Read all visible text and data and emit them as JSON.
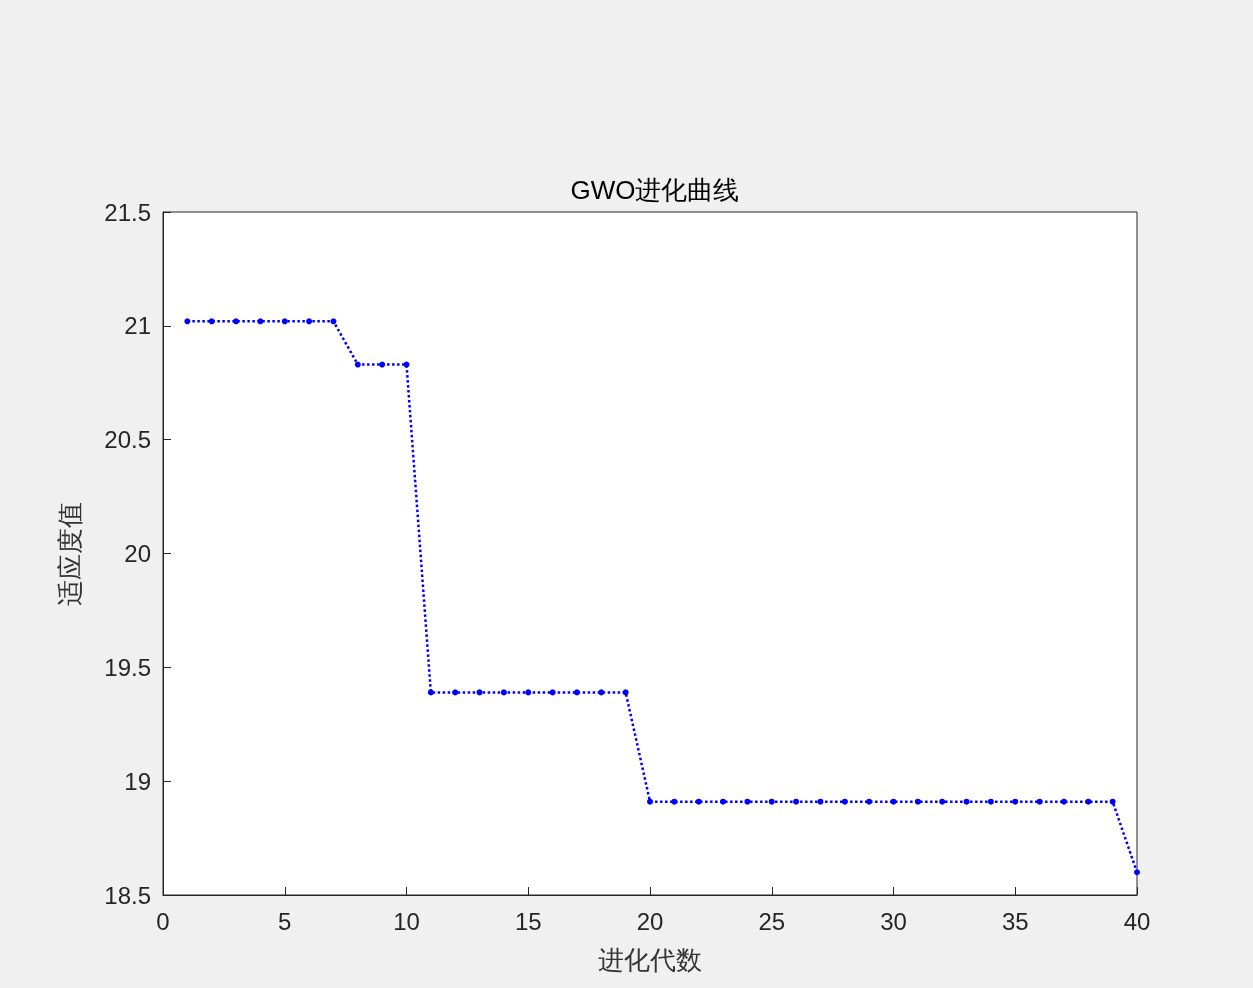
{
  "chart_data": {
    "type": "line",
    "title": "GWO进化曲线",
    "xlabel": "进化代数",
    "ylabel": "适应度值",
    "x": [
      1,
      2,
      3,
      4,
      5,
      6,
      7,
      8,
      9,
      10,
      11,
      12,
      13,
      14,
      15,
      16,
      17,
      18,
      19,
      20,
      21,
      22,
      23,
      24,
      25,
      26,
      27,
      28,
      29,
      30,
      31,
      32,
      33,
      34,
      35,
      36,
      37,
      38,
      39,
      40
    ],
    "series": [
      {
        "color": "#0000ff",
        "values": [
          21.02,
          21.02,
          21.02,
          21.02,
          21.02,
          21.02,
          21.02,
          20.83,
          20.83,
          20.83,
          19.39,
          19.39,
          19.39,
          19.39,
          19.39,
          19.39,
          19.39,
          19.39,
          19.39,
          18.91,
          18.91,
          18.91,
          18.91,
          18.91,
          18.91,
          18.91,
          18.91,
          18.91,
          18.91,
          18.91,
          18.91,
          18.91,
          18.91,
          18.91,
          18.91,
          18.91,
          18.91,
          18.91,
          18.91,
          18.6
        ]
      }
    ],
    "xlim": [
      0,
      40
    ],
    "xticks": [
      0,
      5,
      10,
      15,
      20,
      25,
      30,
      35,
      40
    ],
    "ylim": [
      18.5,
      21.5
    ],
    "yticks": [
      18.5,
      19,
      19.5,
      20,
      20.5,
      21,
      21.5
    ],
    "grid": false,
    "marker": "circle",
    "line_style": "dotted"
  }
}
